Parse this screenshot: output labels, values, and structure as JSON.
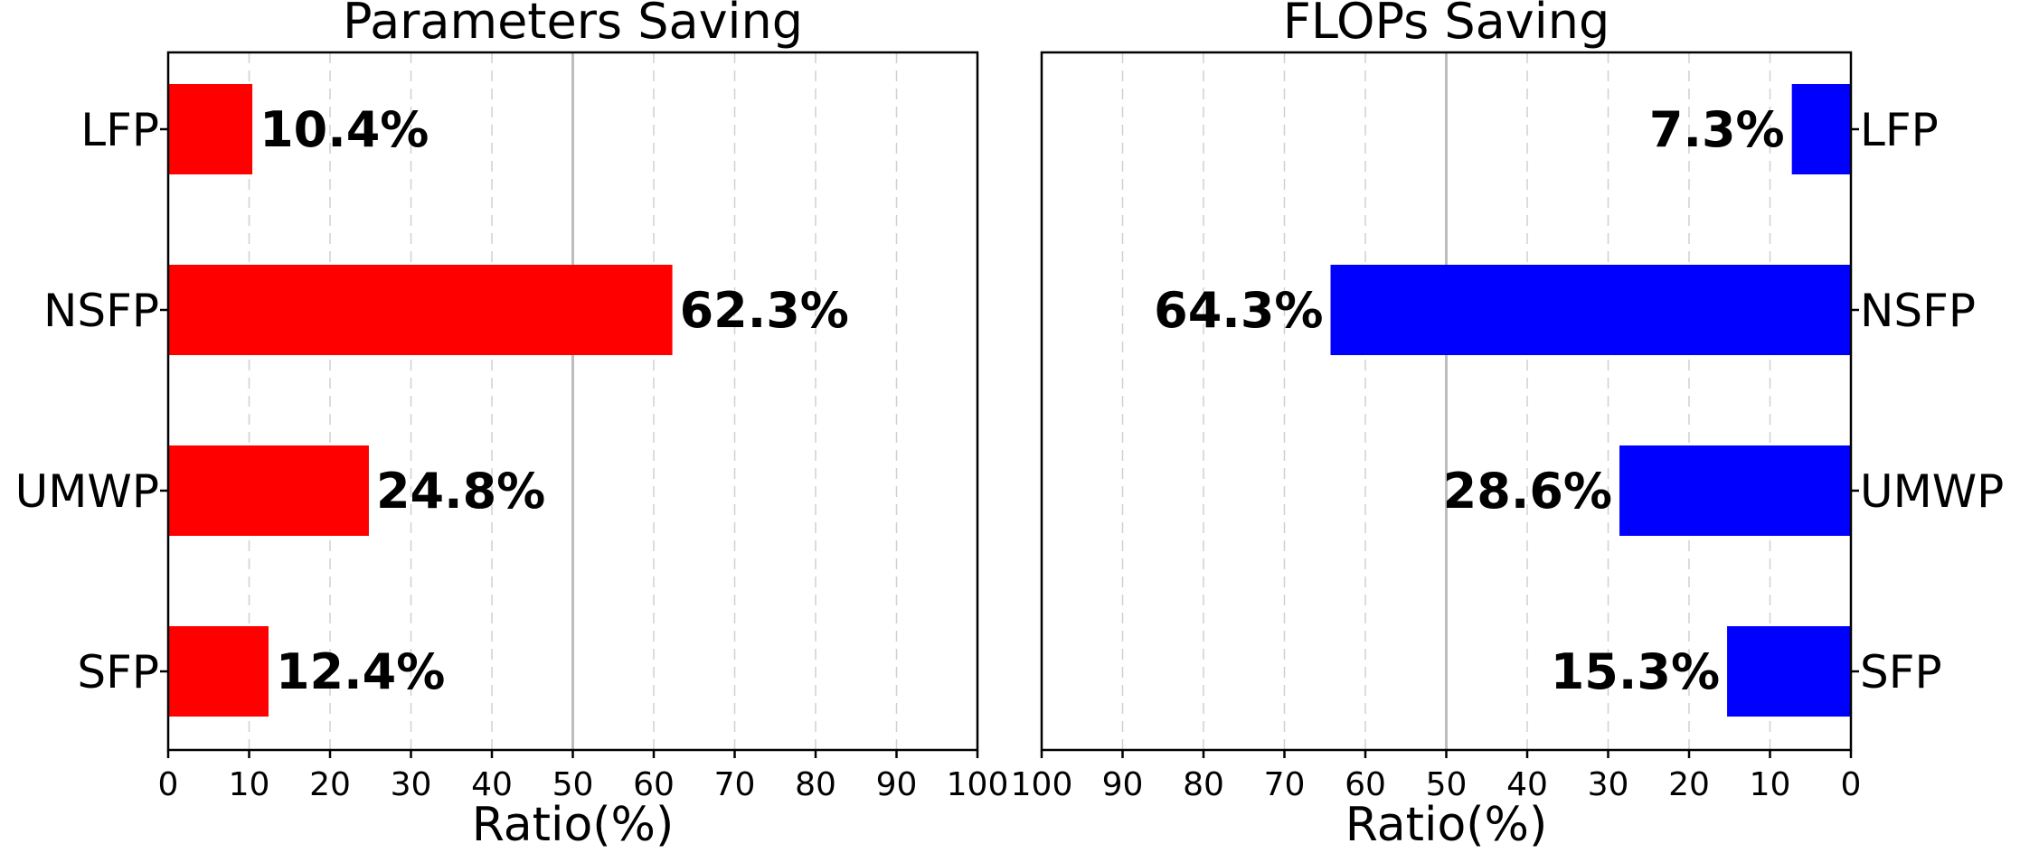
{
  "chart_data": [
    {
      "type": "bar",
      "orientation": "horizontal",
      "title": "Parameters Saving",
      "xlabel": "Ratio(%)",
      "ylabel": "",
      "xlim": [
        0,
        100
      ],
      "x_ticks": [
        0,
        10,
        20,
        30,
        40,
        50,
        60,
        70,
        80,
        90,
        100
      ],
      "x_reversed": false,
      "category_axis_side": "left",
      "categories": [
        "LFP",
        "NSFP",
        "UMWP",
        "SFP"
      ],
      "values": [
        10.4,
        62.3,
        24.8,
        12.4
      ],
      "value_labels": [
        "10.4%",
        "62.3%",
        "24.8%",
        "12.4%"
      ],
      "bar_color": "#ff0000",
      "grid": "vertical-dashed",
      "reference_line_at": 50
    },
    {
      "type": "bar",
      "orientation": "horizontal",
      "title": "FLOPs Saving",
      "xlabel": "Ratio(%)",
      "ylabel": "",
      "xlim": [
        0,
        100
      ],
      "x_ticks": [
        100,
        90,
        80,
        70,
        60,
        50,
        40,
        30,
        20,
        10,
        0
      ],
      "x_reversed": true,
      "category_axis_side": "right",
      "categories": [
        "LFP",
        "NSFP",
        "UMWP",
        "SFP"
      ],
      "values": [
        7.3,
        64.3,
        28.6,
        15.3
      ],
      "value_labels": [
        "7.3%",
        "64.3%",
        "28.6%",
        "15.3%"
      ],
      "bar_color": "#0000ff",
      "grid": "vertical-dashed",
      "reference_line_at": 50
    }
  ]
}
